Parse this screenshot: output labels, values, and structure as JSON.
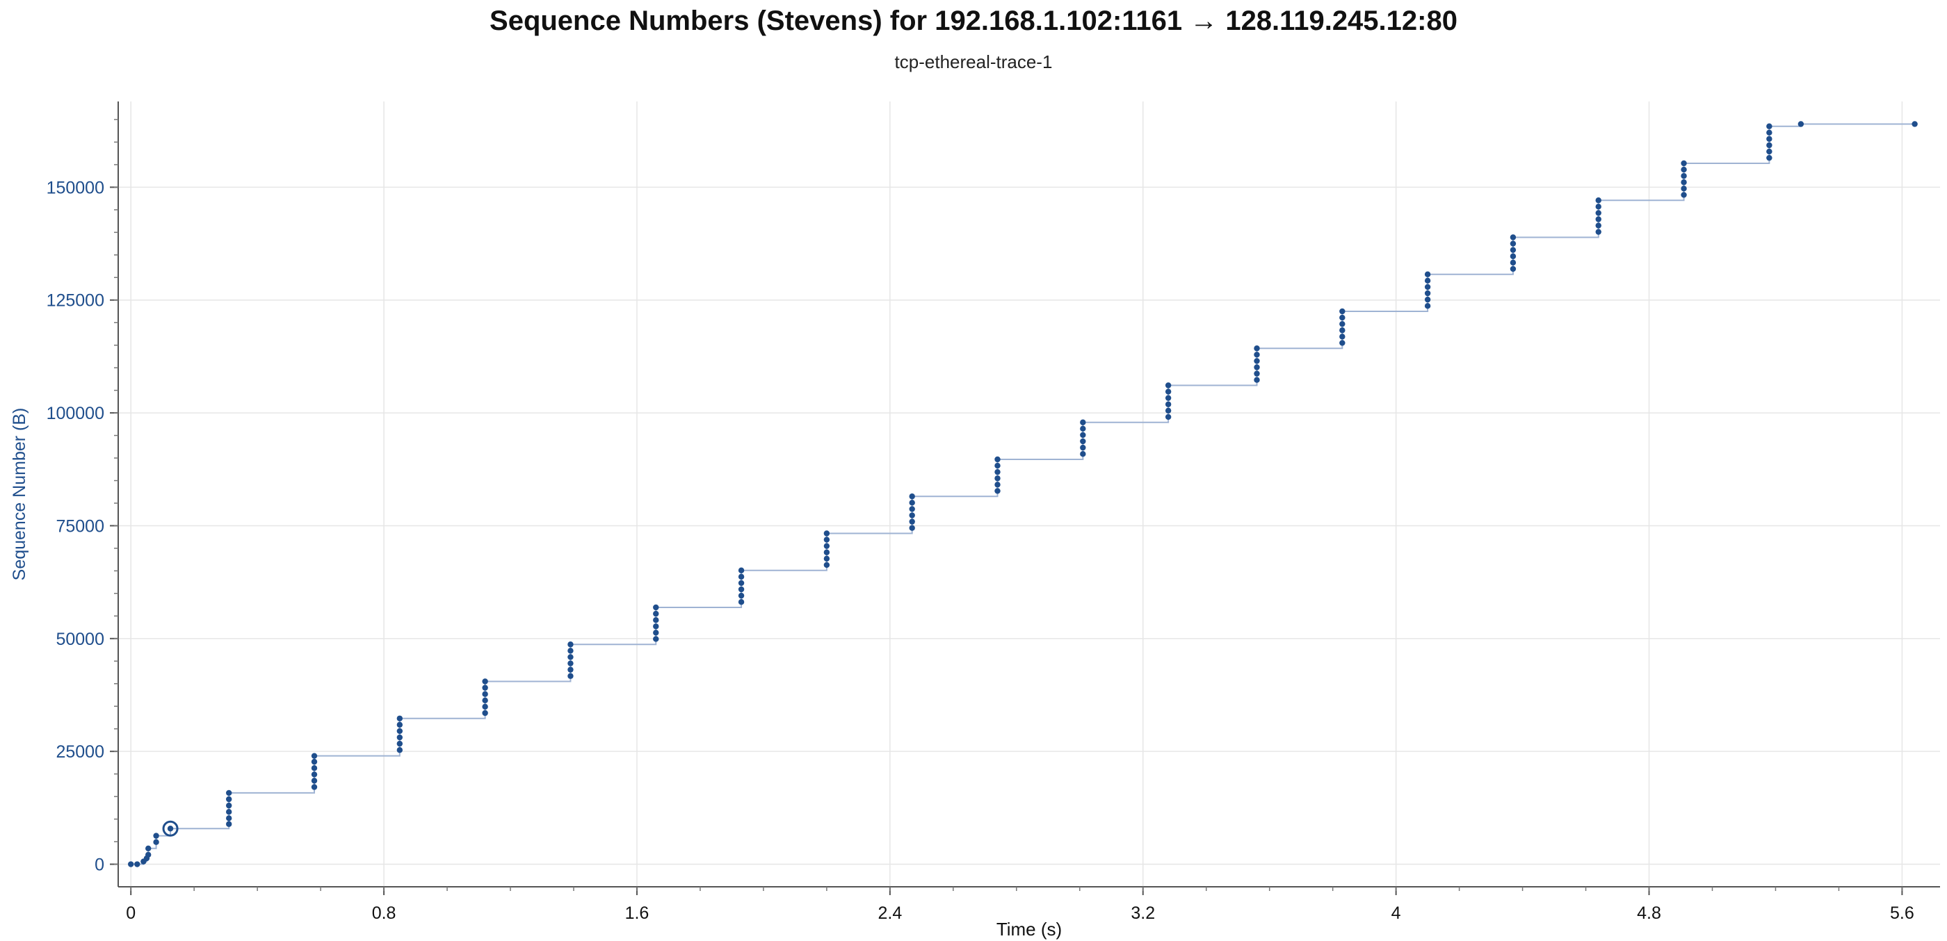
{
  "chart_data": {
    "type": "scatter",
    "title": "Sequence Numbers (Stevens) for 192.168.1.102:1161 → 128.119.245.12:80",
    "subtitle": "tcp-ethereal-trace-1",
    "xlabel": "Time (s)",
    "ylabel": "Sequence Number (B)",
    "xlim": [
      -0.04,
      5.72
    ],
    "ylim": [
      -5000,
      169000
    ],
    "x_ticks": [
      "0",
      "0.8",
      "1.6",
      "2.4",
      "3.2",
      "4",
      "4.8",
      "5.6"
    ],
    "x_tick_values": [
      0,
      0.8,
      1.6,
      2.4,
      3.2,
      4.0,
      4.8,
      5.6
    ],
    "y_ticks": [
      "0",
      "25000",
      "50000",
      "75000",
      "100000",
      "125000",
      "150000"
    ],
    "y_tick_values": [
      0,
      25000,
      50000,
      75000,
      100000,
      125000,
      150000
    ],
    "grid": true,
    "colors": {
      "points": "#1f4e8c",
      "line": "#9fb3d3",
      "axis_text": "#1f4e8c",
      "grid": "#e6e6e6"
    },
    "highlighted_point": {
      "x": 0.125,
      "y": 7900
    },
    "bursts": [
      {
        "x": 0.0,
        "y_values": [
          0
        ]
      },
      {
        "x": 0.02,
        "y_values": [
          0
        ]
      },
      {
        "x": 0.04,
        "y_values": [
          600
        ]
      },
      {
        "x": 0.05,
        "y_values": [
          1300
        ]
      },
      {
        "x": 0.055,
        "y_values": [
          2100,
          3500
        ]
      },
      {
        "x": 0.08,
        "y_values": [
          4900,
          6300
        ]
      },
      {
        "x": 0.125,
        "y_values": [
          7900
        ]
      },
      {
        "x": 0.31,
        "y_values": [
          8900,
          10200,
          11600,
          13000,
          14400,
          15800
        ]
      },
      {
        "x": 0.58,
        "y_values": [
          17100,
          18500,
          19900,
          21300,
          22700,
          24000
        ]
      },
      {
        "x": 0.85,
        "y_values": [
          25300,
          26700,
          28100,
          29500,
          30900,
          32300
        ]
      },
      {
        "x": 1.12,
        "y_values": [
          33500,
          34900,
          36300,
          37700,
          39100,
          40500
        ]
      },
      {
        "x": 1.39,
        "y_values": [
          41700,
          43100,
          44500,
          45900,
          47300,
          48700
        ]
      },
      {
        "x": 1.66,
        "y_values": [
          49900,
          51300,
          52700,
          54100,
          55500,
          56900
        ]
      },
      {
        "x": 1.93,
        "y_values": [
          58100,
          59500,
          60900,
          62300,
          63700,
          65100
        ]
      },
      {
        "x": 2.2,
        "y_values": [
          66300,
          67700,
          69100,
          70500,
          71900,
          73300
        ]
      },
      {
        "x": 2.47,
        "y_values": [
          74500,
          75900,
          77300,
          78700,
          80100,
          81500
        ]
      },
      {
        "x": 2.74,
        "y_values": [
          82700,
          84100,
          85500,
          86900,
          88300,
          89700
        ]
      },
      {
        "x": 3.01,
        "y_values": [
          90900,
          92300,
          93700,
          95100,
          96500,
          97900
        ]
      },
      {
        "x": 3.28,
        "y_values": [
          99100,
          100500,
          101900,
          103300,
          104700,
          106100
        ]
      },
      {
        "x": 3.56,
        "y_values": [
          107300,
          108700,
          110100,
          111500,
          112900,
          114300
        ]
      },
      {
        "x": 3.83,
        "y_values": [
          115500,
          116900,
          118300,
          119700,
          121100,
          122500
        ]
      },
      {
        "x": 4.1,
        "y_values": [
          123700,
          125100,
          126500,
          127900,
          129300,
          130700
        ]
      },
      {
        "x": 4.37,
        "y_values": [
          131900,
          133300,
          134700,
          136100,
          137500,
          138900
        ]
      },
      {
        "x": 4.64,
        "y_values": [
          140100,
          141500,
          142900,
          144300,
          145700,
          147100
        ]
      },
      {
        "x": 4.91,
        "y_values": [
          148300,
          149700,
          151100,
          152500,
          153900,
          155300
        ]
      },
      {
        "x": 5.18,
        "y_values": [
          156500,
          157900,
          159300,
          160700,
          162100,
          163500
        ]
      },
      {
        "x": 5.28,
        "y_values": [
          164000
        ]
      },
      {
        "x": 5.64,
        "y_values": [
          164000
        ]
      }
    ]
  }
}
